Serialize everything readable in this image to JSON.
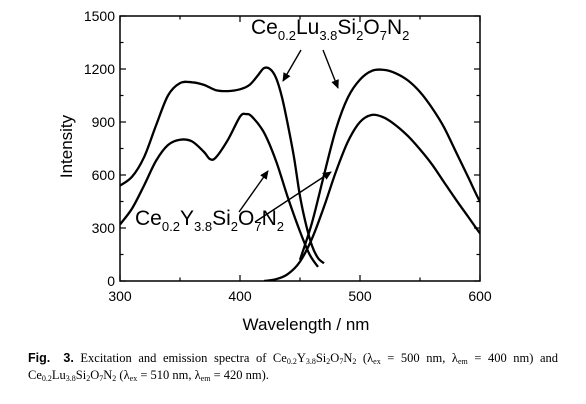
{
  "chart_data": {
    "type": "line",
    "xlabel": "Wavelength / nm",
    "ylabel": "Intensity",
    "xlim": [
      300,
      600
    ],
    "ylim": [
      0,
      1500
    ],
    "xticks": [
      "300",
      "400",
      "500",
      "600"
    ],
    "yticks": [
      "0",
      "300",
      "600",
      "900",
      "1200",
      "1500"
    ],
    "grid": false,
    "series": [
      {
        "label_parts": [
          "Ce",
          "0.2",
          "Lu",
          "3.8",
          "Si",
          "2",
          "O",
          "7",
          "N",
          "2"
        ],
        "curves": [
          {
            "role": "excitation",
            "points": [
              [
                300,
                540
              ],
              [
                310,
                590
              ],
              [
                320,
                700
              ],
              [
                330,
                880
              ],
              [
                340,
                1050
              ],
              [
                350,
                1120
              ],
              [
                360,
                1125
              ],
              [
                370,
                1110
              ],
              [
                380,
                1080
              ],
              [
                390,
                1075
              ],
              [
                400,
                1085
              ],
              [
                408,
                1110
              ],
              [
                415,
                1165
              ],
              [
                420,
                1205
              ],
              [
                425,
                1200
              ],
              [
                430,
                1150
              ],
              [
                435,
                1040
              ],
              [
                440,
                880
              ],
              [
                445,
                700
              ],
              [
                450,
                480
              ],
              [
                455,
                320
              ],
              [
                460,
                200
              ],
              [
                465,
                130
              ],
              [
                470,
                100
              ]
            ]
          },
          {
            "role": "emission",
            "points": [
              [
                450,
                120
              ],
              [
                460,
                330
              ],
              [
                470,
                600
              ],
              [
                480,
                860
              ],
              [
                490,
                1040
              ],
              [
                500,
                1140
              ],
              [
                510,
                1190
              ],
              [
                520,
                1195
              ],
              [
                530,
                1175
              ],
              [
                540,
                1135
              ],
              [
                550,
                1070
              ],
              [
                560,
                980
              ],
              [
                570,
                870
              ],
              [
                580,
                730
              ],
              [
                590,
                590
              ],
              [
                600,
                450
              ],
              [
                607,
                400
              ]
            ]
          }
        ]
      },
      {
        "label_parts": [
          "Ce",
          "0.2",
          "Y",
          "3.8",
          "Si",
          "2",
          "O",
          "7",
          "N",
          "2"
        ],
        "curves": [
          {
            "role": "excitation",
            "points": [
              [
                300,
                320
              ],
              [
                310,
                410
              ],
              [
                320,
                540
              ],
              [
                330,
                680
              ],
              [
                340,
                770
              ],
              [
                350,
                800
              ],
              [
                360,
                790
              ],
              [
                370,
                730
              ],
              [
                375,
                690
              ],
              [
                380,
                700
              ],
              [
                390,
                800
              ],
              [
                400,
                930
              ],
              [
                405,
                945
              ],
              [
                410,
                930
              ],
              [
                420,
                840
              ],
              [
                430,
                680
              ],
              [
                440,
                470
              ],
              [
                450,
                280
              ],
              [
                458,
                150
              ],
              [
                465,
                80
              ]
            ]
          },
          {
            "role": "emission",
            "points": [
              [
                420,
                0
              ],
              [
                430,
                10
              ],
              [
                440,
                40
              ],
              [
                450,
                110
              ],
              [
                460,
                240
              ],
              [
                470,
                420
              ],
              [
                480,
                620
              ],
              [
                490,
                790
              ],
              [
                500,
                900
              ],
              [
                510,
                940
              ],
              [
                520,
                925
              ],
              [
                530,
                880
              ],
              [
                540,
                820
              ],
              [
                550,
                745
              ],
              [
                560,
                660
              ],
              [
                570,
                560
              ],
              [
                580,
                460
              ],
              [
                590,
                365
              ],
              [
                600,
                270
              ],
              [
                607,
                220
              ]
            ]
          }
        ]
      }
    ]
  },
  "caption": {
    "fig_label": "Fig.",
    "fig_number": "3.",
    "text_1": "Excitation and emission spectra of Ce",
    "y_formula": [
      [
        "0.2",
        true
      ],
      [
        "Y",
        false
      ],
      [
        "3.8",
        true
      ],
      [
        "Si",
        false
      ],
      [
        "2",
        true
      ],
      [
        "O",
        false
      ],
      [
        "7",
        true
      ],
      [
        "N",
        false
      ],
      [
        "2",
        true
      ]
    ],
    "text_2": "(λ",
    "ex_sub": "ex",
    "text_3": "= 500 nm, λ",
    "em_sub": "em",
    "text_4": "= 400 nm) and Ce",
    "lu_formula": [
      [
        "0.2",
        true
      ],
      [
        "Lu",
        false
      ],
      [
        "3.8",
        true
      ],
      [
        "Si",
        false
      ],
      [
        "2",
        true
      ],
      [
        "O",
        false
      ],
      [
        "7",
        true
      ],
      [
        "N",
        false
      ],
      [
        "2",
        true
      ]
    ],
    "text_5": "(λ",
    "text_6": "= 510 nm, λ",
    "text_7": "= 420 nm)."
  }
}
